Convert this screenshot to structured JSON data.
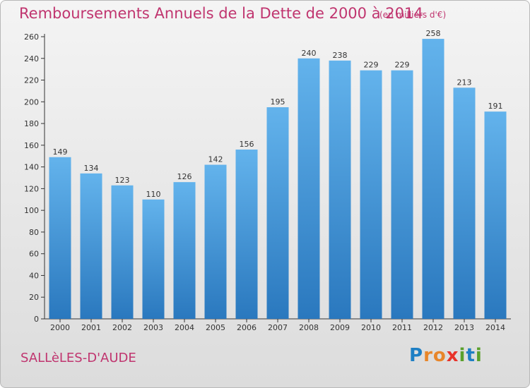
{
  "header": {
    "title": "Remboursements Annuels de la Dette de 2000 à 2014",
    "subtitle": "(en milliers d'€)"
  },
  "footer": {
    "commune": "SALLèLES-D'AUDE",
    "brand": {
      "letters": [
        "P",
        "r",
        "o",
        "x",
        "i",
        "t",
        "i"
      ],
      "colors": [
        "#1e7fc4",
        "#e8862a",
        "#e8862a",
        "#e8332a",
        "#5aa02c",
        "#1e7fc4",
        "#5aa02c"
      ]
    }
  },
  "colors": {
    "accent": "#c0356f",
    "bar_light": "#63b3ec",
    "bar_dark": "#2a78be"
  },
  "chart_data": {
    "type": "bar",
    "categories": [
      "2000",
      "2001",
      "2002",
      "2003",
      "2004",
      "2005",
      "2006",
      "2007",
      "2008",
      "2009",
      "2010",
      "2011",
      "2012",
      "2013",
      "2014"
    ],
    "values": [
      149,
      134,
      123,
      110,
      126,
      142,
      156,
      195,
      240,
      238,
      229,
      229,
      258,
      213,
      191
    ],
    "title": "Remboursements Annuels de la Dette de 2000 à 2014",
    "xlabel": "",
    "ylabel": "",
    "ylim": [
      0,
      260
    ],
    "yticks": [
      0,
      20,
      40,
      60,
      80,
      100,
      120,
      140,
      160,
      180,
      200,
      220,
      240,
      260
    ],
    "grid": false,
    "data_labels": true
  }
}
